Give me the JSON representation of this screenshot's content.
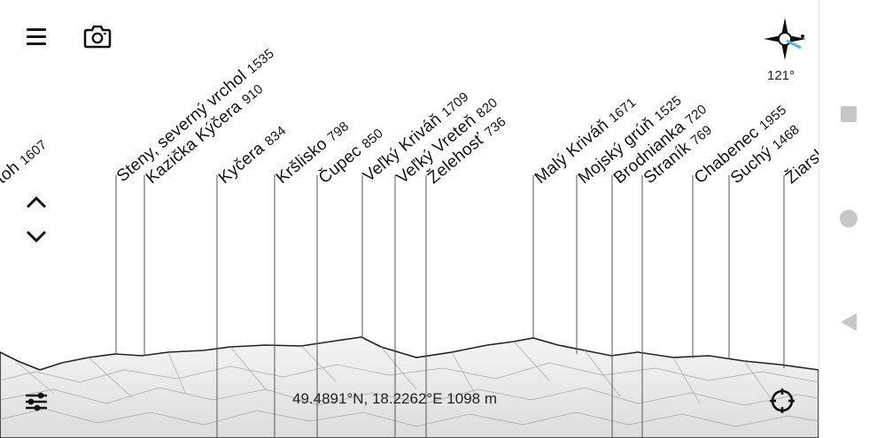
{
  "peaks": [
    {
      "name": "toh",
      "elevation": "1607"
    },
    {
      "name": "Steny, severný vrchol",
      "elevation": "1535"
    },
    {
      "name": "Kazička Kýčera",
      "elevation": "910"
    },
    {
      "name": "Kyčera",
      "elevation": "834"
    },
    {
      "name": "Kršlisko",
      "elevation": "798"
    },
    {
      "name": "Čupec",
      "elevation": "850"
    },
    {
      "name": "Veľký Kriváň",
      "elevation": "1709"
    },
    {
      "name": "Veľký Vreteň",
      "elevation": "820"
    },
    {
      "name": "Želehosť",
      "elevation": "736"
    },
    {
      "name": "Malý Kriváň",
      "elevation": "1671"
    },
    {
      "name": "Mojský grúň",
      "elevation": "1525"
    },
    {
      "name": "Brodnianka",
      "elevation": "720"
    },
    {
      "name": "Straník",
      "elevation": "769"
    },
    {
      "name": "Chabenec",
      "elevation": "1955"
    },
    {
      "name": "Suchý",
      "elevation": "1468"
    },
    {
      "name": "Žiarsk",
      "elevation": ""
    }
  ],
  "compass": {
    "heading": "121°"
  },
  "status": {
    "coordinates": "49.4891°N, 18.2262°E 1098 m"
  },
  "icons": {
    "menu": "menu-icon",
    "camera": "camera-icon",
    "up": "chevron-up-icon",
    "down": "chevron-down-icon",
    "settings": "sliders-icon",
    "location": "crosshair-icon",
    "compass": "compass-icon",
    "nav_square": "recents-icon",
    "nav_circle": "home-icon",
    "nav_triangle": "back-icon"
  }
}
